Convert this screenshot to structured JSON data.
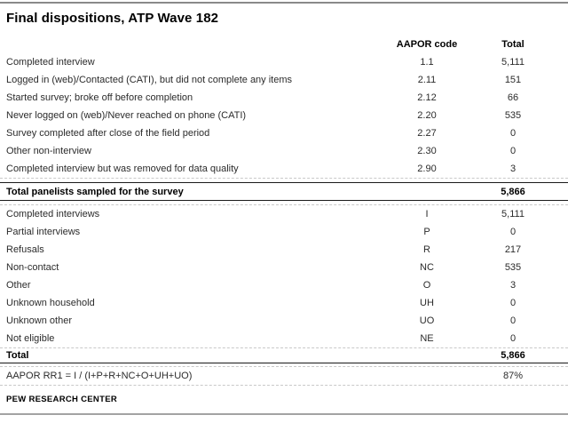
{
  "chart_data": {
    "type": "table",
    "title": "Final dispositions, ATP Wave 182",
    "columns": [
      "",
      "AAPOR code",
      "Total"
    ],
    "rows": [
      {
        "label": "Completed interview",
        "code": "1.1",
        "total": "5,111"
      },
      {
        "label": "Logged in (web)/Contacted (CATI), but did not complete any items",
        "code": "2.11",
        "total": "151"
      },
      {
        "label": "Started survey; broke off before completion",
        "code": "2.12",
        "total": "66"
      },
      {
        "label": "Never logged on (web)/Never reached on phone (CATI)",
        "code": "2.20",
        "total": "535"
      },
      {
        "label": "Survey completed after close of the field period",
        "code": "2.27",
        "total": "0"
      },
      {
        "label": "Other non-interview",
        "code": "2.30",
        "total": "0"
      },
      {
        "label": "Completed interview but was removed for data quality",
        "code": "2.90",
        "total": "3"
      },
      {
        "label": "Total panelists sampled for the survey",
        "code": "",
        "total": "5,866"
      },
      {
        "label": "Completed interviews",
        "code": "I",
        "total": "5,111"
      },
      {
        "label": "Partial interviews",
        "code": "P",
        "total": "0"
      },
      {
        "label": "Refusals",
        "code": "R",
        "total": "217"
      },
      {
        "label": "Non-contact",
        "code": "NC",
        "total": "535"
      },
      {
        "label": "Other",
        "code": "O",
        "total": "3"
      },
      {
        "label": "Unknown household",
        "code": "UH",
        "total": "0"
      },
      {
        "label": "Unknown other",
        "code": "UO",
        "total": "0"
      },
      {
        "label": "Not eligible",
        "code": "NE",
        "total": "0"
      },
      {
        "label": "Total",
        "code": "",
        "total": "5,866"
      },
      {
        "label": "AAPOR RR1 = I / (I+P+R+NC+O+UH+UO)",
        "code": "",
        "total": "87%"
      }
    ],
    "source": "PEW RESEARCH CENTER",
    "layout": {
      "grid": "off",
      "legend": "none"
    }
  },
  "colors": {
    "top_rule": "#8a8a8a",
    "bottom_rule": "#a3a3a3",
    "dashed_divider": "#c9c9c9",
    "solid_divider": "#1a1a1a",
    "text": "#2b2b2b",
    "emphasis_text": "#000000"
  }
}
